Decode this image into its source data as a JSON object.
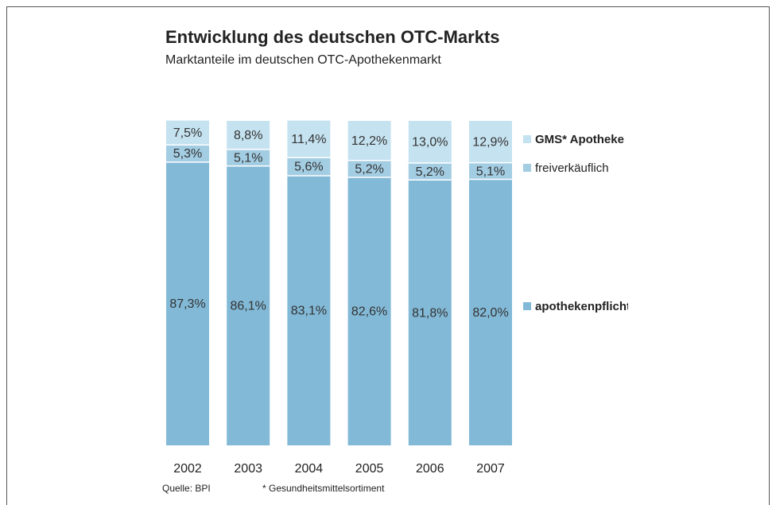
{
  "chart_data": {
    "type": "stacked_bar",
    "title": "Entwicklung des deutschen OTC-Markts",
    "subtitle": "Marktanteile im deutschen OTC-Apothekenmarkt",
    "categories": [
      "2002",
      "2003",
      "2004",
      "2005",
      "2006",
      "2007"
    ],
    "ylim": [
      0,
      100
    ],
    "series": [
      {
        "name": "apothekenpflichtig",
        "color": "#82b9d7",
        "values": [
          87.3,
          86.1,
          83.1,
          82.6,
          81.8,
          82.0
        ],
        "value_labels": [
          "87,3%",
          "86,1%",
          "83,1%",
          "82,6%",
          "81,8%",
          "82,0%"
        ]
      },
      {
        "name": "freiverkäuflich",
        "color": "#a3cde3",
        "values": [
          5.3,
          5.1,
          5.6,
          5.2,
          5.2,
          5.1
        ],
        "value_labels": [
          "5,3%",
          "5,1%",
          "5,6%",
          "5,2%",
          "5,2%",
          "5,1%"
        ]
      },
      {
        "name": "GMS* Apotheke",
        "color": "#c5e2f0",
        "values": [
          7.5,
          8.8,
          11.4,
          12.2,
          13.0,
          12.9
        ],
        "value_labels": [
          "7,5%",
          "8,8%",
          "11,4%",
          "12,2%",
          "13,0%",
          "12,9%"
        ]
      }
    ],
    "source": "Quelle: BPI",
    "footnote": "* Gesundheitsmittelsortiment"
  }
}
